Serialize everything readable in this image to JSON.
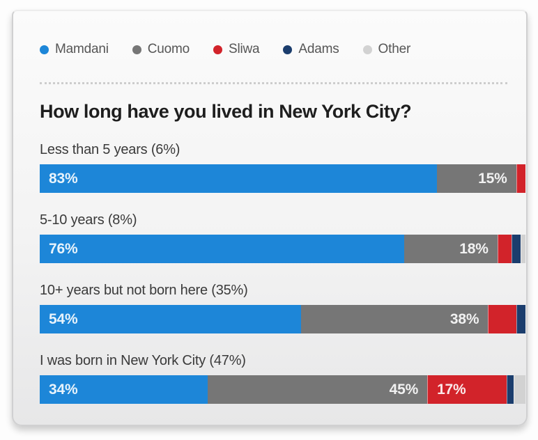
{
  "title": "How long have you lived in New York City?",
  "colors": {
    "mamdani": "#1d86d8",
    "cuomo": "#767676",
    "sliwa": "#d2232a",
    "adams": "#1b3d6d",
    "other": "#d2d2d2"
  },
  "legend": [
    {
      "label": "Mamdani",
      "key": "mamdani"
    },
    {
      "label": "Cuomo",
      "key": "cuomo"
    },
    {
      "label": "Sliwa",
      "key": "sliwa"
    },
    {
      "label": "Adams",
      "key": "adams"
    },
    {
      "label": "Other",
      "key": "other"
    }
  ],
  "chart_data": {
    "type": "bar",
    "orientation": "horizontal",
    "stacked": true,
    "unit": "%",
    "xlim": [
      0,
      100
    ],
    "grid": false,
    "legend_position": "top",
    "series_names": [
      "Mamdani",
      "Cuomo",
      "Sliwa",
      "Adams",
      "Other"
    ],
    "categories": [
      "Less than 5 years (6%)",
      "5-10 years (8%)",
      "10+ years but not born here (35%)",
      "I was born in New York City (47%)"
    ],
    "rows": [
      {
        "label": "Less than 5 years (6%)",
        "segments": [
          {
            "name": "Mamdani",
            "key": "mamdani",
            "value": 83,
            "text": "83%",
            "align": "left"
          },
          {
            "name": "Cuomo",
            "key": "cuomo",
            "value": 15,
            "text": "15%",
            "align": "right"
          },
          {
            "name": "Sliwa",
            "key": "sliwa",
            "value": 2,
            "text": "",
            "align": ""
          }
        ]
      },
      {
        "label": "5-10 years (8%)",
        "segments": [
          {
            "name": "Mamdani",
            "key": "mamdani",
            "value": 76,
            "text": "76%",
            "align": "left"
          },
          {
            "name": "Cuomo",
            "key": "cuomo",
            "value": 18,
            "text": "18%",
            "align": "right"
          },
          {
            "name": "Sliwa",
            "key": "sliwa",
            "value": 3,
            "text": "",
            "align": ""
          },
          {
            "name": "Adams",
            "key": "adams",
            "value": 2,
            "text": "",
            "align": ""
          },
          {
            "name": "Other",
            "key": "other",
            "value": 1,
            "text": "",
            "align": ""
          }
        ]
      },
      {
        "label": "10+ years but not born here (35%)",
        "segments": [
          {
            "name": "Mamdani",
            "key": "mamdani",
            "value": 54,
            "text": "54%",
            "align": "left"
          },
          {
            "name": "Cuomo",
            "key": "cuomo",
            "value": 38,
            "text": "38%",
            "align": "right"
          },
          {
            "name": "Sliwa",
            "key": "sliwa",
            "value": 6,
            "text": "",
            "align": ""
          },
          {
            "name": "Adams",
            "key": "adams",
            "value": 2,
            "text": "",
            "align": ""
          }
        ]
      },
      {
        "label": "I was born in New York City (47%)",
        "segments": [
          {
            "name": "Mamdani",
            "key": "mamdani",
            "value": 34,
            "text": "34%",
            "align": "left"
          },
          {
            "name": "Cuomo",
            "key": "cuomo",
            "value": 45,
            "text": "45%",
            "align": "right"
          },
          {
            "name": "Sliwa",
            "key": "sliwa",
            "value": 17,
            "text": "17%",
            "align": "left"
          },
          {
            "name": "Adams",
            "key": "adams",
            "value": 1.5,
            "text": "",
            "align": ""
          },
          {
            "name": "Other",
            "key": "other",
            "value": 2.5,
            "text": "",
            "align": ""
          }
        ]
      }
    ]
  }
}
